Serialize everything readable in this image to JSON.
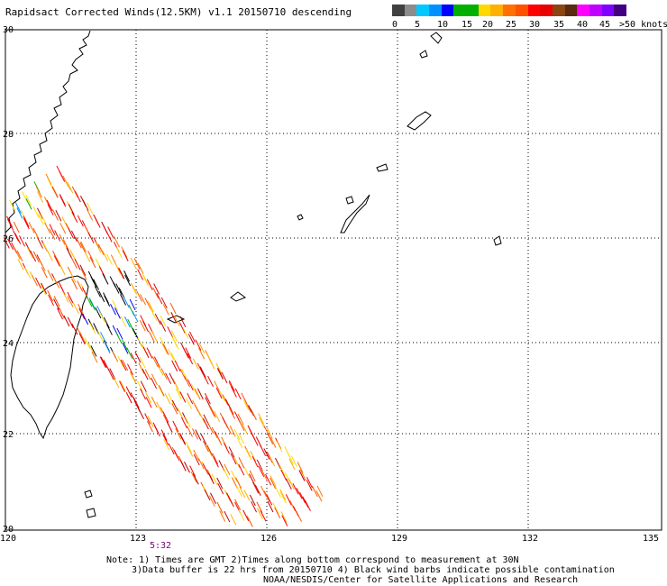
{
  "title": "Rapidsact Corrected Winds(12.5KM) v1.1 20150710 descending",
  "legend": {
    "colors": [
      "#404040",
      "#8c8c8c",
      "#00c8ff",
      "#0090ff",
      "#0000ff",
      "#00b000",
      "#00b000",
      "#ffd800",
      "#ffb000",
      "#ff7000",
      "#ff5000",
      "#ff0000",
      "#e80000",
      "#8b4513",
      "#5a2a10",
      "#ff00ff",
      "#c000ff",
      "#8000ff",
      "#400080"
    ],
    "labels": [
      "0",
      "5",
      "10",
      "15",
      "20",
      "25",
      "30",
      "35",
      "40",
      "45",
      ">50 knots"
    ]
  },
  "map": {
    "lat_labels": [
      "30",
      "28",
      "26",
      "24",
      "22",
      "20"
    ],
    "lon_labels": [
      "120",
      "123",
      "126",
      "129",
      "132",
      "135"
    ]
  },
  "pass_time": "5:32",
  "notes": [
    "Note: 1) Times are GMT 2)Times along bottom correspond to measurement at 30N",
    "3)Data buffer is 22 hrs from 20150710 4) Black wind barbs indicate possible contamination",
    "NOAA/NESDIS/Center for Satellite Applications and Research"
  ]
}
